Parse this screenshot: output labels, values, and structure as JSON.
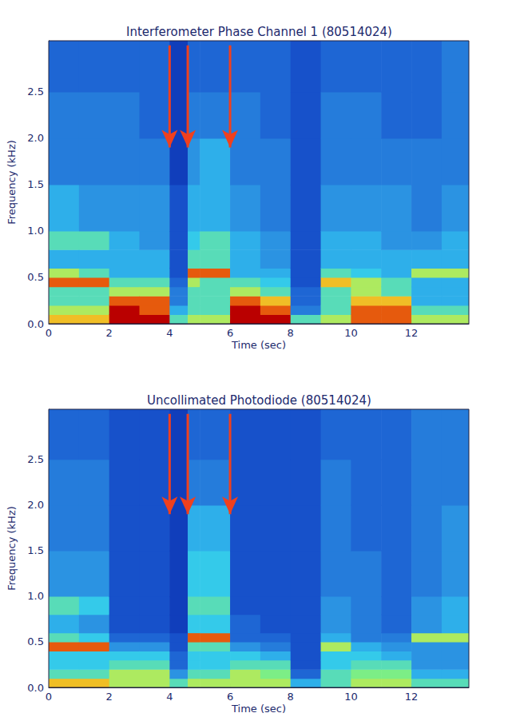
{
  "chart_data": [
    {
      "type": "heatmap",
      "title": "Interferometer Phase Channel 1 (80514024)",
      "x_label": "Time (sec)",
      "y_label": "Frequency (kHz)",
      "xlim": [
        0,
        13.9
      ],
      "ylim": [
        0,
        3.05
      ],
      "xticks": [
        0,
        2,
        4,
        6,
        8,
        10,
        12
      ],
      "yticks": [
        {
          "value": 0,
          "label": "0.0"
        },
        0.5,
        {
          "value": 1,
          "label": "1.0"
        },
        1.5,
        {
          "value": 2,
          "label": "2.0"
        },
        2.5
      ],
      "grid": false,
      "clim": [
        0,
        10
      ],
      "x_edges": [
        0,
        1,
        2,
        3,
        4,
        4.6,
        5,
        6,
        7,
        8,
        9,
        10,
        11,
        12,
        13,
        13.9
      ],
      "y_edges": [
        0,
        0.1,
        0.2,
        0.3,
        0.4,
        0.5,
        0.6,
        0.8,
        1.0,
        1.5,
        2.0,
        2.5,
        3.05
      ],
      "cells": [
        [
          7,
          6,
          5,
          5,
          8,
          6,
          4,
          5,
          4,
          3,
          3,
          2.5
        ],
        [
          7,
          6,
          5,
          5,
          8,
          5,
          4,
          5,
          3.5,
          3,
          3,
          2.5
        ],
        [
          9,
          9,
          8,
          6,
          5,
          4,
          4,
          4,
          3.5,
          3,
          3,
          2.5
        ],
        [
          9,
          8,
          8,
          6,
          5,
          4,
          4,
          3.5,
          3.5,
          3,
          2.5,
          2.5
        ],
        [
          5,
          4,
          3,
          3,
          2.5,
          2,
          2,
          2,
          2,
          1.5,
          1.5,
          1.5
        ],
        [
          6,
          5,
          5,
          5,
          6,
          8,
          5,
          4.5,
          4,
          3.5,
          3,
          2.5
        ],
        [
          6,
          5,
          5,
          5,
          5,
          8,
          5,
          5,
          4,
          4,
          3,
          2.5
        ],
        [
          9,
          9,
          8,
          6,
          5,
          4,
          4,
          4,
          3.5,
          3,
          3,
          2.5
        ],
        [
          9,
          8,
          7,
          5,
          4.5,
          4,
          3.5,
          3.5,
          3,
          3,
          2.5,
          2.5
        ],
        [
          5,
          3,
          2.5,
          2.5,
          2,
          2,
          2,
          2,
          2,
          2,
          2,
          2
        ],
        [
          6,
          5,
          5,
          5,
          7,
          5,
          4,
          4,
          3.5,
          3,
          3,
          2.5
        ],
        [
          8,
          8,
          7,
          6,
          6,
          4.5,
          4,
          4,
          3.5,
          3,
          3,
          2.5
        ],
        [
          8,
          8,
          7,
          5,
          5,
          4,
          4,
          3.5,
          3.5,
          3,
          2.5,
          2.5
        ],
        [
          6,
          5,
          4,
          4,
          4,
          6,
          4,
          3.5,
          3,
          3,
          2.5,
          2.5
        ],
        [
          6,
          5,
          4,
          4,
          4,
          6,
          4,
          4,
          3.5,
          3,
          3,
          3
        ]
      ],
      "arrows": {
        "color": "#f0401e",
        "marks": [
          {
            "x": 4,
            "y": [
              3.0,
              1.9
            ]
          },
          {
            "x": 4.6,
            "y": [
              3.0,
              1.9
            ]
          },
          {
            "x": 6,
            "y": [
              3.0,
              1.9
            ]
          }
        ]
      }
    },
    {
      "type": "heatmap",
      "title": "Uncollimated Photodiode (80514024)",
      "x_label": "Time (sec)",
      "y_label": "Frequency (kHz)",
      "xlim": [
        0,
        13.9
      ],
      "ylim": [
        0,
        3.05
      ],
      "xticks": [
        0,
        2,
        4,
        6,
        8,
        10,
        12
      ],
      "yticks": [
        {
          "value": 0,
          "label": "0.0"
        },
        0.5,
        {
          "value": 1,
          "label": "1.0"
        },
        1.5,
        {
          "value": 2,
          "label": "2.0"
        },
        2.5
      ],
      "grid": false,
      "clim": [
        0,
        10
      ],
      "x_edges": [
        0,
        1,
        2,
        3,
        4,
        4.6,
        5,
        6,
        7,
        8,
        9,
        10,
        11,
        12,
        13,
        13.9
      ],
      "y_edges": [
        0,
        0.1,
        0.2,
        0.3,
        0.4,
        0.5,
        0.6,
        0.8,
        1.0,
        1.5,
        2.0,
        2.5,
        3.05
      ],
      "cells": [
        [
          7,
          5,
          4.5,
          4.5,
          8,
          5,
          4,
          5,
          3.5,
          3,
          3,
          2.5
        ],
        [
          7,
          5,
          4.5,
          4.5,
          8,
          4.5,
          3.5,
          4.5,
          3.5,
          3,
          3,
          2.5
        ],
        [
          6,
          6,
          5,
          4.5,
          3.5,
          2.5,
          2,
          2,
          2,
          2,
          2,
          2
        ],
        [
          6,
          6,
          5,
          4.5,
          3.5,
          2.5,
          2,
          2,
          2,
          2,
          2,
          2
        ],
        [
          5,
          3.5,
          2.5,
          2.5,
          2,
          2,
          1.5,
          1.5,
          1.5,
          1.5,
          1.5,
          1.5
        ],
        [
          6,
          5,
          4.5,
          4.5,
          5,
          8,
          4.5,
          5,
          4.5,
          4,
          3,
          2.5
        ],
        [
          6,
          5,
          4.5,
          4.5,
          5,
          8,
          4.5,
          5,
          4.5,
          4,
          3,
          2.5
        ],
        [
          6,
          6,
          5,
          4.5,
          3.5,
          2.5,
          2.5,
          2,
          2,
          2,
          2,
          2
        ],
        [
          6,
          5.5,
          5,
          4,
          3,
          2.5,
          2,
          2,
          2,
          2,
          2,
          2
        ],
        [
          4,
          2.5,
          2,
          2,
          2,
          2,
          2,
          2,
          2,
          2,
          2,
          2
        ],
        [
          5,
          5,
          4.5,
          4.5,
          6,
          4,
          3.5,
          3.5,
          3,
          3,
          3,
          2.5
        ],
        [
          6,
          5.5,
          5,
          4.5,
          4,
          3,
          3,
          3,
          3,
          2.5,
          2.5,
          2.5
        ],
        [
          6,
          5.5,
          5,
          4,
          3.5,
          3,
          2.5,
          2.5,
          2.5,
          2.5,
          2.5,
          2.5
        ],
        [
          5,
          4,
          3.5,
          3.5,
          3.5,
          6,
          3.5,
          3.5,
          3,
          3,
          3,
          3
        ],
        [
          5,
          4,
          3.5,
          3.5,
          3.5,
          6,
          4,
          4,
          3.5,
          3.5,
          3,
          3
        ]
      ],
      "arrows": {
        "color": "#f0401e",
        "marks": [
          {
            "x": 4,
            "y": [
              3.0,
              1.9
            ]
          },
          {
            "x": 4.6,
            "y": [
              3.0,
              1.9
            ]
          },
          {
            "x": 6,
            "y": [
              3.0,
              1.9
            ]
          }
        ]
      }
    }
  ]
}
